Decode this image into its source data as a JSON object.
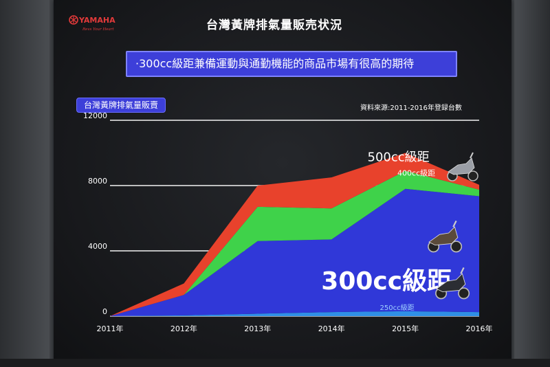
{
  "header": {
    "brand": "YAMAHA",
    "brand_tagline": "Revs Your Heart",
    "title": "台灣黃牌排氣量販売状況",
    "subtitle": "·300cc級距兼備運動與通勤機能的商品市場有很高的期待",
    "chart_label": "台灣黃牌排氣量販賣",
    "source_note": "資料來源:2011-2016年登録台數"
  },
  "colors": {
    "c250": "#2f8fe6",
    "c300": "#3038d8",
    "c400": "#3fd24a",
    "c500": "#e8422c",
    "label_box": "#3d3fd9"
  },
  "chart_data": {
    "type": "area",
    "stacked": true,
    "categories": [
      "2011年",
      "2012年",
      "2013年",
      "2014年",
      "2015年",
      "2016年"
    ],
    "ylim": [
      0,
      12000
    ],
    "yticks": [
      0,
      4000,
      8000,
      12000
    ],
    "grid": true,
    "series": [
      {
        "name": "250cc級距",
        "values": [
          0,
          50,
          150,
          250,
          300,
          250
        ],
        "color_key": "c250"
      },
      {
        "name": "300cc級距",
        "values": [
          0,
          1250,
          4450,
          4450,
          7500,
          7100
        ],
        "color_key": "c300"
      },
      {
        "name": "400cc級距",
        "values": [
          0,
          0,
          2100,
          1900,
          1100,
          400
        ],
        "color_key": "c400"
      },
      {
        "name": "500cc級距",
        "values": [
          0,
          700,
          1300,
          1900,
          1100,
          300
        ],
        "color_key": "c500"
      }
    ]
  }
}
